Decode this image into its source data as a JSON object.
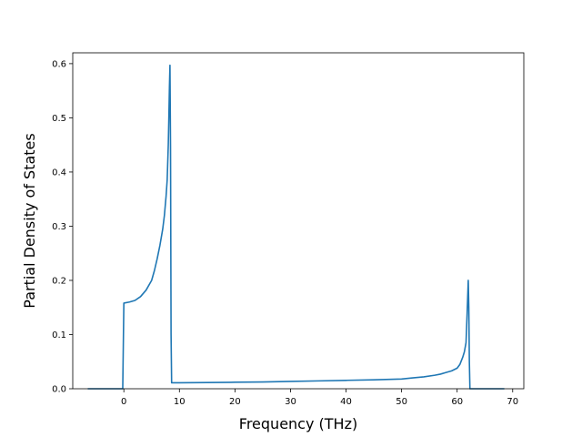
{
  "chart_data": {
    "type": "line",
    "xlabel": "Frequency (THz)",
    "ylabel": "Partial Density of States",
    "xlim": [
      -9.2,
      72
    ],
    "ylim": [
      0,
      0.62
    ],
    "xticks": [
      0,
      10,
      20,
      30,
      40,
      50,
      60,
      70
    ],
    "yticks": [
      0.0,
      0.1,
      0.2,
      0.3,
      0.4,
      0.5,
      0.6
    ],
    "xtick_labels": [
      "0",
      "10",
      "20",
      "30",
      "40",
      "50",
      "60",
      "70"
    ],
    "ytick_labels": [
      "0.0",
      "0.1",
      "0.2",
      "0.3",
      "0.4",
      "0.5",
      "0.6"
    ],
    "grid": false,
    "color": "#1f77b4",
    "series": [
      {
        "x": [
          -6.5,
          -0.2,
          0.0,
          1.0,
          2.0,
          3.0,
          4.0,
          5.0,
          5.5,
          6.0,
          6.5,
          7.0,
          7.3,
          7.6,
          7.8,
          8.0,
          8.1,
          8.2,
          8.3,
          8.4,
          8.5,
          8.6,
          8.8,
          9.0,
          10,
          15,
          20,
          25,
          30,
          35,
          40,
          45,
          50,
          52,
          54,
          56,
          57,
          58,
          59,
          60,
          60.5,
          61.0,
          61.3,
          61.6,
          61.8,
          62.0,
          62.1,
          62.2,
          62.3,
          62.4,
          62.6,
          68.5
        ],
        "y": [
          0.0,
          0.0,
          0.158,
          0.16,
          0.163,
          0.17,
          0.182,
          0.2,
          0.218,
          0.24,
          0.265,
          0.295,
          0.32,
          0.355,
          0.385,
          0.45,
          0.5,
          0.555,
          0.597,
          0.45,
          0.1,
          0.011,
          0.011,
          0.011,
          0.011,
          0.0115,
          0.012,
          0.0125,
          0.0135,
          0.0145,
          0.0155,
          0.0165,
          0.018,
          0.02,
          0.022,
          0.025,
          0.027,
          0.03,
          0.033,
          0.038,
          0.045,
          0.058,
          0.068,
          0.085,
          0.14,
          0.2,
          0.15,
          0.05,
          0.0,
          0.0,
          0.0,
          0.0
        ]
      }
    ]
  }
}
